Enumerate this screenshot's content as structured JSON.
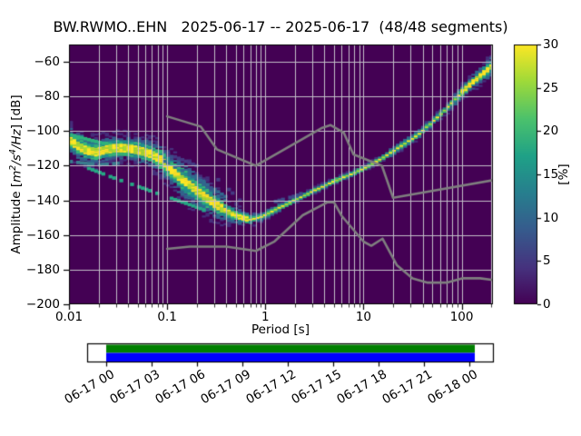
{
  "axes": {
    "ylabel_prefix": "Amplitude [",
    "ylabel_math_parts": {
      "b1": "m",
      "s1": "2",
      "b2": "/s",
      "s2": "4",
      "b3": "/Hz"
    },
    "ylabel_suffix": "] [dB]"
  },
  "chart_data": {
    "type": "heatmap",
    "subtype": "ppsd_probability_histogram",
    "title": "BW.RWMO..EHN   2025-06-17 -- 2025-06-17  (48/48 segments)",
    "xlabel": "Period [s]",
    "ylabel": "Amplitude [m²/s⁴/Hz] [dB]",
    "x_scale": "log",
    "xlim": [
      0.01,
      208
    ],
    "ylim": [
      -200,
      -50
    ],
    "x_ticks": [
      0.01,
      0.1,
      1,
      10,
      100
    ],
    "x_tick_labels": [
      "0.01",
      "0.1",
      "1",
      "10",
      "100"
    ],
    "y_ticks": [
      -60,
      -80,
      -100,
      -120,
      -140,
      -160,
      -180,
      -200
    ],
    "y_tick_labels": [
      "−60",
      "−80",
      "−100",
      "−120",
      "−140",
      "−160",
      "−180",
      "−200"
    ],
    "grid": true,
    "background_color": "#440154",
    "grid_color": "#c3bfc9",
    "colormap": "viridis",
    "colorbar": {
      "label": "[%]",
      "min": 0,
      "max": 30,
      "ticks": [
        0,
        5,
        10,
        15,
        20,
        25,
        30
      ],
      "tick_labels": [
        "0",
        "5",
        "10",
        "15",
        "20",
        "25",
        "30"
      ],
      "gradient": [
        [
          "0",
          "#440154"
        ],
        [
          "0.14",
          "#46327e"
        ],
        [
          "0.29",
          "#365c8d"
        ],
        [
          "0.43",
          "#277f8e"
        ],
        [
          "0.57",
          "#1fa187"
        ],
        [
          "0.71",
          "#4ac16d"
        ],
        [
          "0.86",
          "#a0da39"
        ],
        [
          "1",
          "#fde725"
        ]
      ]
    },
    "psd_mode_line_db": [
      [
        0.01,
        -105
      ],
      [
        0.0125,
        -108.5
      ],
      [
        0.015,
        -111
      ],
      [
        0.019,
        -112
      ],
      [
        0.024,
        -110.5
      ],
      [
        0.03,
        -109.5
      ],
      [
        0.04,
        -109.8
      ],
      [
        0.052,
        -111
      ],
      [
        0.068,
        -113
      ],
      [
        0.085,
        -116
      ],
      [
        0.1,
        -120
      ],
      [
        0.13,
        -126
      ],
      [
        0.17,
        -131
      ],
      [
        0.22,
        -136
      ],
      [
        0.3,
        -141.5
      ],
      [
        0.4,
        -146
      ],
      [
        0.55,
        -149.5
      ],
      [
        0.7,
        -151
      ],
      [
        0.9,
        -149.5
      ],
      [
        1.15,
        -146.5
      ],
      [
        1.45,
        -143.5
      ],
      [
        1.8,
        -141
      ],
      [
        2.3,
        -138
      ],
      [
        2.9,
        -135.2
      ],
      [
        3.7,
        -132.3
      ],
      [
        4.7,
        -129.5
      ],
      [
        6.0,
        -127
      ],
      [
        7.7,
        -124.5
      ],
      [
        10,
        -121.5
      ],
      [
        13,
        -118
      ],
      [
        17,
        -114
      ],
      [
        22,
        -110
      ],
      [
        28,
        -106
      ],
      [
        36,
        -102
      ],
      [
        47,
        -96
      ],
      [
        60,
        -90.5
      ],
      [
        78,
        -84
      ],
      [
        100,
        -77.5
      ],
      [
        130,
        -71.5
      ],
      [
        165,
        -66.5
      ],
      [
        208,
        -62
      ]
    ],
    "psd_spread_halfwidth_db": [
      [
        0.01,
        5
      ],
      [
        0.02,
        4.5
      ],
      [
        0.04,
        4.5
      ],
      [
        0.07,
        5
      ],
      [
        0.1,
        5.5
      ],
      [
        0.15,
        6.5
      ],
      [
        0.25,
        6
      ],
      [
        0.4,
        4
      ],
      [
        0.6,
        2.5
      ],
      [
        0.9,
        1.7
      ],
      [
        1.5,
        1.3
      ],
      [
        3,
        1.2
      ],
      [
        8,
        1.2
      ],
      [
        15,
        1.3
      ],
      [
        30,
        1.5
      ],
      [
        60,
        1.8
      ],
      [
        100,
        2.2
      ],
      [
        150,
        3
      ],
      [
        208,
        3.6
      ]
    ],
    "secondary_strands": [
      {
        "color": "#26a784",
        "gap": 0.2,
        "points": [
          [
            0.015,
            -121
          ],
          [
            0.03,
            -127.5
          ],
          [
            0.06,
            -133.5
          ],
          [
            0.1,
            -138
          ],
          [
            0.16,
            -142
          ],
          [
            0.25,
            -146
          ]
        ]
      },
      {
        "color": "#2db27d",
        "gap": 0.2,
        "points": [
          [
            0.01,
            -102
          ],
          [
            0.016,
            -105
          ],
          [
            0.024,
            -107.5
          ]
        ]
      },
      {
        "color": "#3a7c8e",
        "gap": 0.3,
        "points": [
          [
            0.01,
            -117.5
          ],
          [
            0.02,
            -119.5
          ],
          [
            0.032,
            -118.5
          ]
        ]
      },
      {
        "color": "#31688e",
        "gap": 0.3,
        "points": [
          [
            0.09,
            -117
          ],
          [
            0.15,
            -123.5
          ],
          [
            0.25,
            -130.5
          ],
          [
            0.42,
            -139
          ]
        ]
      },
      {
        "color": "#443a83",
        "gap": 0.4,
        "points": [
          [
            0.1,
            -113
          ],
          [
            0.2,
            -120
          ],
          [
            0.35,
            -129
          ],
          [
            0.55,
            -140
          ]
        ]
      },
      {
        "color": "#3f4b8a",
        "gap": 0.5,
        "points": [
          [
            1.2,
            -141
          ],
          [
            2.0,
            -137.5
          ],
          [
            3.0,
            -133.5
          ]
        ]
      }
    ],
    "noise_models": {
      "color": "#7f7f7f",
      "nhnm": [
        [
          0.1,
          -91.5
        ],
        [
          0.22,
          -97.4
        ],
        [
          0.32,
          -110.5
        ],
        [
          0.8,
          -120.0
        ],
        [
          3.8,
          -98.1
        ],
        [
          4.6,
          -96.5
        ],
        [
          6.3,
          -101.0
        ],
        [
          7.9,
          -113.5
        ],
        [
          15.4,
          -120.0
        ],
        [
          20.0,
          -138.5
        ],
        [
          354.8,
          -126.0
        ]
      ],
      "nlnm": [
        [
          0.1,
          -168.0
        ],
        [
          0.17,
          -166.7
        ],
        [
          0.4,
          -166.7
        ],
        [
          0.8,
          -169.2
        ],
        [
          1.24,
          -163.7
        ],
        [
          2.4,
          -148.6
        ],
        [
          4.3,
          -141.1
        ],
        [
          5.0,
          -141.1
        ],
        [
          6.0,
          -149.0
        ],
        [
          10.0,
          -163.8
        ],
        [
          12.0,
          -166.2
        ],
        [
          15.6,
          -162.1
        ],
        [
          21.9,
          -177.5
        ],
        [
          31.6,
          -185.0
        ],
        [
          45.0,
          -187.5
        ],
        [
          70.0,
          -187.5
        ],
        [
          101.0,
          -185.0
        ],
        [
          154.0,
          -185.0
        ],
        [
          328.0,
          -187.5
        ]
      ]
    },
    "cell_colors": {
      "core": "#fde725",
      "core2": "#a8db34",
      "mid": "#35b779",
      "mid2": "#21918c",
      "outer": "#31688e",
      "outer2": "#3b528b",
      "faint": "#462f7c"
    },
    "timeline": {
      "tick_labels": [
        "06-17 00",
        "06-17 03",
        "06-17 06",
        "06-17 09",
        "06-17 12",
        "06-17 15",
        "06-17 18",
        "06-17 21",
        "06-18 00"
      ],
      "coverage_top_color": "#008000",
      "coverage_bottom_color": "#0000ff"
    }
  }
}
